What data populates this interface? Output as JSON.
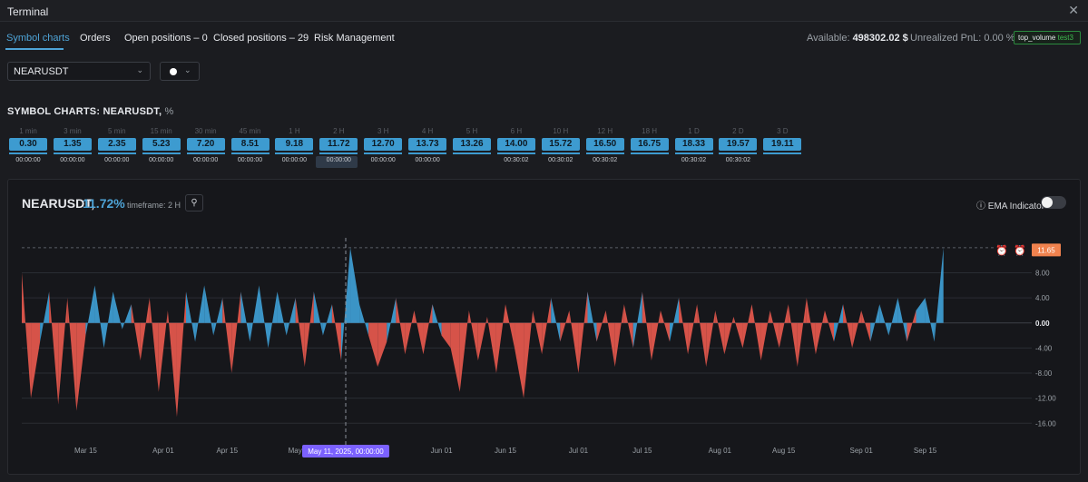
{
  "window": {
    "title": "Terminal",
    "close_icon": "close-icon"
  },
  "tabs": [
    {
      "label": "Symbol charts",
      "active": true
    },
    {
      "label": "Orders"
    },
    {
      "label": "Open positions – 0"
    },
    {
      "label": "Closed positions – 29"
    },
    {
      "label": "Risk Management"
    }
  ],
  "stats": {
    "available_label": "Available:",
    "available_value": "498302.02 $",
    "pnl_label": "Unrealized PnL:",
    "pnl_value": "0.00 %",
    "badge_main": "top_volume",
    "badge_sub": "test3"
  },
  "controls": {
    "symbol": "NEARUSDT",
    "color_icon": "chevron-down-icon"
  },
  "section": {
    "title": "SYMBOL CHARTS: NEARUSDT,",
    "unit": "%"
  },
  "timeframes": [
    {
      "label": "1 min",
      "value": "0.30",
      "time": "00:00:00"
    },
    {
      "label": "3 min",
      "value": "1.35",
      "time": "00:00:00"
    },
    {
      "label": "5 min",
      "value": "2.35",
      "time": "00:00:00"
    },
    {
      "label": "15 min",
      "value": "5.23",
      "time": "00:00:00"
    },
    {
      "label": "30 min",
      "value": "7.20",
      "time": "00:00:00"
    },
    {
      "label": "45 min",
      "value": "8.51",
      "time": "00:00:00"
    },
    {
      "label": "1 H",
      "value": "9.18",
      "time": "00:00:00"
    },
    {
      "label": "2 H",
      "value": "11.72",
      "time": "00:00:00",
      "selected": true
    },
    {
      "label": "3 H",
      "value": "12.70",
      "time": "00:00:00"
    },
    {
      "label": "4 H",
      "value": "13.73",
      "time": "00:00:00"
    },
    {
      "label": "5 H",
      "value": "13.26",
      "time": ""
    },
    {
      "label": "6 H",
      "value": "14.00",
      "time": "00:30:02"
    },
    {
      "label": "10 H",
      "value": "15.72",
      "time": "00:30:02"
    },
    {
      "label": "12 H",
      "value": "16.50",
      "time": "00:30:02"
    },
    {
      "label": "18 H",
      "value": "16.75",
      "time": ""
    },
    {
      "label": "1 D",
      "value": "18.33",
      "time": "00:30:02"
    },
    {
      "label": "2 D",
      "value": "19.57",
      "time": "00:30:02"
    },
    {
      "label": "3 D",
      "value": "19.11",
      "time": ""
    }
  ],
  "chart_header": {
    "symbol": "NEARUSDT,",
    "value": "11.72%",
    "timeframe": "timeframe: 2 H",
    "ema_label": "EMA Indicator",
    "ema_enabled": false
  },
  "colors": {
    "positive": "#3d9bd0",
    "negative": "#e0564c",
    "accent": "#4ea3d6",
    "crosshair_label": "#7b61ff",
    "price_tag": "#f0824e"
  },
  "chart_data": {
    "type": "area",
    "title": "",
    "xlabel": "",
    "ylabel": "",
    "x_ticks": [
      "Mar 15",
      "Apr 01",
      "Apr 15",
      "May 01",
      "Jun 01",
      "Jun 15",
      "Jul 01",
      "Jul 15",
      "Aug 01",
      "Aug 15",
      "Sep 01",
      "Sep 15"
    ],
    "y_ticks": [
      "8.00",
      "4.00",
      "0.00",
      "-4.00",
      "-8.00",
      "-12.00",
      "-16.00"
    ],
    "ylim": [
      -19,
      13
    ],
    "xlim": [
      "2025-03-01",
      "2025-09-30"
    ],
    "last_value": "11.65",
    "crosshair_label": "May 11, 2025, 00:00:00",
    "crosshair_date": "2025-05-11",
    "series": [
      {
        "dates": [
          "2025-03-01",
          "2025-03-03",
          "2025-03-05",
          "2025-03-07",
          "2025-03-09",
          "2025-03-11",
          "2025-03-13",
          "2025-03-15",
          "2025-03-17",
          "2025-03-19",
          "2025-03-21",
          "2025-03-23",
          "2025-03-25",
          "2025-03-27",
          "2025-03-29",
          "2025-03-31",
          "2025-04-02",
          "2025-04-04",
          "2025-04-06",
          "2025-04-08",
          "2025-04-10",
          "2025-04-12",
          "2025-04-14",
          "2025-04-16",
          "2025-04-18",
          "2025-04-20",
          "2025-04-22",
          "2025-04-24",
          "2025-04-26",
          "2025-04-28",
          "2025-04-30",
          "2025-05-02",
          "2025-05-04",
          "2025-05-06",
          "2025-05-08",
          "2025-05-10",
          "2025-05-12",
          "2025-05-14",
          "2025-05-16",
          "2025-05-18",
          "2025-05-20",
          "2025-05-22",
          "2025-05-24",
          "2025-05-26",
          "2025-05-28",
          "2025-05-30",
          "2025-06-01",
          "2025-06-03",
          "2025-06-05",
          "2025-06-07",
          "2025-06-09",
          "2025-06-11",
          "2025-06-13",
          "2025-06-15",
          "2025-06-17",
          "2025-06-19",
          "2025-06-21",
          "2025-06-23",
          "2025-06-25",
          "2025-06-27",
          "2025-06-29",
          "2025-07-01",
          "2025-07-03",
          "2025-07-05",
          "2025-07-07",
          "2025-07-09",
          "2025-07-11",
          "2025-07-13",
          "2025-07-15",
          "2025-07-17",
          "2025-07-19",
          "2025-07-21",
          "2025-07-23",
          "2025-07-25",
          "2025-07-27",
          "2025-07-29",
          "2025-07-31",
          "2025-08-02",
          "2025-08-04",
          "2025-08-06",
          "2025-08-08",
          "2025-08-10",
          "2025-08-12",
          "2025-08-14",
          "2025-08-16",
          "2025-08-18",
          "2025-08-20",
          "2025-08-22",
          "2025-08-24",
          "2025-08-26",
          "2025-08-28",
          "2025-08-30",
          "2025-09-01",
          "2025-09-03",
          "2025-09-05",
          "2025-09-07",
          "2025-09-09",
          "2025-09-11",
          "2025-09-13",
          "2025-09-15",
          "2025-09-17",
          "2025-09-19"
        ],
        "values": [
          8,
          -12,
          -3,
          5,
          -13,
          4,
          -14,
          -2,
          6,
          -4,
          5,
          -1,
          3,
          -6,
          4,
          -11,
          2,
          -15,
          5,
          -3,
          6,
          -2,
          4,
          -8,
          5,
          -3,
          6,
          -4,
          5,
          -2,
          4,
          -7,
          5,
          -2,
          3,
          -6,
          12,
          3,
          -2,
          -7,
          -3,
          4,
          -5,
          2,
          -5,
          3,
          -2,
          -4,
          -11,
          2,
          -6,
          1,
          -8,
          3,
          -4,
          -12,
          2,
          -5,
          4,
          -3,
          2,
          -8,
          5,
          -3,
          2,
          -7,
          3,
          -4,
          5,
          -6,
          2,
          -3,
          4,
          -5,
          3,
          -7,
          2,
          -5,
          1,
          -4,
          3,
          -6,
          2,
          -4,
          3,
          -7,
          4,
          -5,
          2,
          -3,
          3,
          -4,
          2,
          -3,
          3,
          -2,
          4,
          -3,
          2,
          4,
          -3,
          12
        ]
      }
    ]
  }
}
